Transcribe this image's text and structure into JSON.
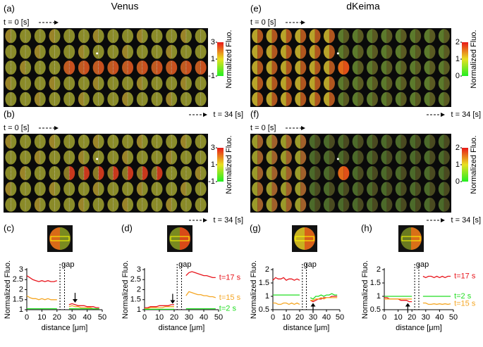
{
  "titles": [
    "Venus",
    "dKeima"
  ],
  "image_panels": [
    {
      "label": "(a)",
      "start": "t = 0 [s]",
      "end": "t = 34 [s]",
      "clim": [
        -1,
        3
      ],
      "cticks": [
        3,
        1,
        -1
      ],
      "clabel": "Normalized Fluo."
    },
    {
      "label": "(b)",
      "start": "t = 0 [s]",
      "end": "t = 34 [s]",
      "clim": [
        -1,
        3
      ],
      "cticks": [
        3,
        1,
        -1
      ],
      "clabel": "Normalized Fluo."
    },
    {
      "label": "(e)",
      "start": "t = 0 [s]",
      "end": "t = 34 [s]",
      "clim": [
        0,
        2
      ],
      "cticks": [
        2,
        1,
        0
      ],
      "clabel": "Normalized Fluo."
    },
    {
      "label": "(f)",
      "start": "t = 0 [s]",
      "end": "t = 34 [s]",
      "clim": [
        0,
        2
      ],
      "cticks": [
        2,
        1,
        0
      ],
      "clabel": "Normalized Fluo."
    }
  ],
  "chart_data": [
    {
      "type": "line",
      "label": "(c)",
      "xlabel": "distance [μm]",
      "ylabel": "Normalized Fluo.",
      "xlim": [
        0,
        50
      ],
      "xticks": [
        0,
        10,
        20,
        30,
        40,
        50
      ],
      "ylim": [
        1,
        3
      ],
      "yticks": [
        1,
        1.5,
        2,
        2.5,
        3
      ],
      "gap": {
        "label": "gap",
        "x": [
          22,
          25
        ]
      },
      "arrow": {
        "x": 32,
        "y": 1.35,
        "direction": "down"
      },
      "x": [
        0,
        2,
        4,
        6,
        8,
        10,
        12,
        14,
        16,
        18,
        20,
        22,
        24,
        26,
        28,
        30,
        32,
        34,
        36,
        38,
        40,
        42,
        44,
        46,
        48
      ],
      "series": [
        {
          "color": "#e8141b",
          "values": [
            2.7,
            2.6,
            2.5,
            2.45,
            2.4,
            2.45,
            2.4,
            2.45,
            2.4,
            2.4,
            2.45,
            null,
            null,
            null,
            1.25,
            1.3,
            1.25,
            1.2,
            1.2,
            1.2,
            1.15,
            1.15,
            1.15,
            1.1,
            1.1
          ]
        },
        {
          "color": "#f5a623",
          "values": [
            1.7,
            1.6,
            1.55,
            1.55,
            1.5,
            1.55,
            1.5,
            1.55,
            1.5,
            1.5,
            1.5,
            null,
            null,
            null,
            1.15,
            1.2,
            1.15,
            1.15,
            1.1,
            1.1,
            1.1,
            1.1,
            1.05,
            1.05,
            1.05
          ]
        },
        {
          "color": "#22dd22",
          "values": [
            1.05,
            1.05,
            1.05,
            1.05,
            1.05,
            1.05,
            1.05,
            1.05,
            1.05,
            1.05,
            1.05,
            null,
            null,
            null,
            1.05,
            1.05,
            1.05,
            1.05,
            1.05,
            1.05,
            1.05,
            1.05,
            1.05,
            1.05,
            1.05
          ]
        }
      ]
    },
    {
      "type": "line",
      "label": "(d)",
      "xlabel": "distance [μm]",
      "ylabel": "Normalized Fluo.",
      "xlim": [
        0,
        50
      ],
      "xticks": [
        0,
        10,
        20,
        30,
        40,
        50
      ],
      "ylim": [
        1,
        3
      ],
      "yticks": [
        1,
        1.5,
        2,
        2.5,
        3
      ],
      "gap": {
        "label": "gap",
        "x": [
          22,
          25
        ]
      },
      "arrow": {
        "x": 19,
        "y": 1.3,
        "direction": "down"
      },
      "x": [
        0,
        2,
        4,
        6,
        8,
        10,
        12,
        14,
        16,
        18,
        20,
        22,
        24,
        26,
        28,
        30,
        32,
        34,
        36,
        38,
        40,
        42,
        44,
        46,
        48
      ],
      "series": [
        {
          "name": "t=17 s",
          "color": "#e8141b",
          "values": [
            1.1,
            1.1,
            1.15,
            1.15,
            1.15,
            1.2,
            1.2,
            1.2,
            1.2,
            1.25,
            1.25,
            null,
            null,
            null,
            2.7,
            2.85,
            2.9,
            2.85,
            2.8,
            2.75,
            2.7,
            2.7,
            2.65,
            2.6,
            2.6
          ]
        },
        {
          "name": "t=15 s",
          "color": "#f5a623",
          "values": [
            1.05,
            1.05,
            1.1,
            1.1,
            1.1,
            1.1,
            1.1,
            1.15,
            1.15,
            1.15,
            1.15,
            null,
            null,
            null,
            1.7,
            1.9,
            1.85,
            1.8,
            1.75,
            1.75,
            1.7,
            1.7,
            1.65,
            1.65,
            1.6
          ]
        },
        {
          "name": "t=2 s",
          "color": "#22dd22",
          "values": [
            1.02,
            1.02,
            1.02,
            1.02,
            1.02,
            1.02,
            1.02,
            1.02,
            1.02,
            1.02,
            1.02,
            null,
            null,
            null,
            1.05,
            1.05,
            1.05,
            1.05,
            1.05,
            1.05,
            1.05,
            1.05,
            1.05,
            1.05,
            1.05
          ]
        }
      ]
    },
    {
      "type": "line",
      "label": "(g)",
      "xlabel": "distance [μm]",
      "ylabel": "Normalized Fluo.",
      "xlim": [
        0,
        50
      ],
      "xticks": [
        0,
        10,
        20,
        30,
        40,
        50
      ],
      "ylim": [
        0.5,
        2
      ],
      "yticks": [
        0.5,
        1,
        1.5,
        2
      ],
      "gap": {
        "label": "gap",
        "x": [
          22,
          25
        ]
      },
      "arrow": {
        "x": 30,
        "y": 0.75,
        "direction": "up"
      },
      "x": [
        0,
        2,
        4,
        6,
        8,
        10,
        12,
        14,
        16,
        18,
        20,
        22,
        24,
        26,
        28,
        30,
        32,
        34,
        36,
        38,
        40,
        42,
        44,
        46,
        48
      ],
      "series": [
        {
          "color": "#e8141b",
          "values": [
            1.6,
            1.7,
            1.65,
            1.65,
            1.7,
            1.6,
            1.65,
            1.65,
            1.6,
            1.65,
            1.6,
            null,
            null,
            null,
            0.85,
            0.8,
            0.85,
            0.9,
            0.9,
            0.95,
            0.95,
            0.95,
            1.0,
            1.0,
            1.0
          ]
        },
        {
          "color": "#22dd22",
          "values": [
            1.05,
            1.05,
            1.05,
            1.05,
            1.05,
            1.05,
            1.05,
            1.05,
            1.05,
            1.05,
            1.05,
            null,
            null,
            null,
            0.95,
            0.9,
            1.0,
            1.0,
            1.05,
            1.0,
            1.05,
            1.05,
            1.1,
            1.05,
            1.05
          ]
        },
        {
          "color": "#f5a623",
          "values": [
            0.75,
            0.75,
            0.7,
            0.7,
            0.75,
            0.75,
            0.7,
            0.75,
            0.7,
            0.75,
            0.7,
            null,
            null,
            null,
            0.85,
            0.85,
            0.9,
            0.9,
            0.95,
            0.9,
            0.95,
            0.95,
            0.95,
            0.95,
            0.95
          ]
        }
      ]
    },
    {
      "type": "line",
      "label": "(h)",
      "xlabel": "distance [μm]",
      "ylabel": "Normalized Fluo.",
      "xlim": [
        0,
        50
      ],
      "xticks": [
        0,
        10,
        20,
        30,
        40,
        50
      ],
      "ylim": [
        0.5,
        2
      ],
      "yticks": [
        0.5,
        1,
        1.5,
        2
      ],
      "gap": {
        "label": "gap",
        "x": [
          22,
          25
        ]
      },
      "arrow": {
        "x": 17,
        "y": 0.75,
        "direction": "up"
      },
      "x": [
        0,
        2,
        4,
        6,
        8,
        10,
        12,
        14,
        16,
        18,
        20,
        22,
        24,
        26,
        28,
        30,
        32,
        34,
        36,
        38,
        40,
        42,
        44,
        46,
        48
      ],
      "series": [
        {
          "name": "t=17 s",
          "color": "#e8141b",
          "values": [
            0.95,
            0.95,
            0.9,
            0.9,
            0.9,
            0.9,
            0.85,
            0.85,
            0.85,
            0.8,
            0.8,
            null,
            null,
            null,
            1.75,
            1.7,
            1.75,
            1.75,
            1.7,
            1.75,
            1.7,
            1.75,
            1.7,
            1.75,
            1.75
          ]
        },
        {
          "name": "t=2 s",
          "color": "#22dd22",
          "values": [
            1.0,
            1.0,
            1.0,
            1.0,
            1.0,
            1.0,
            1.0,
            1.0,
            1.0,
            1.0,
            1.0,
            null,
            null,
            null,
            1.0,
            1.0,
            1.0,
            1.0,
            1.0,
            1.0,
            1.0,
            1.0,
            1.0,
            1.0,
            1.0
          ]
        },
        {
          "name": "t=15 s",
          "color": "#f5a623",
          "values": [
            0.9,
            0.9,
            0.9,
            0.9,
            0.9,
            0.9,
            0.9,
            0.9,
            0.9,
            0.9,
            0.9,
            null,
            null,
            null,
            0.75,
            0.75,
            0.7,
            0.7,
            0.72,
            0.7,
            0.72,
            0.7,
            0.72,
            0.7,
            0.72
          ]
        }
      ]
    }
  ]
}
